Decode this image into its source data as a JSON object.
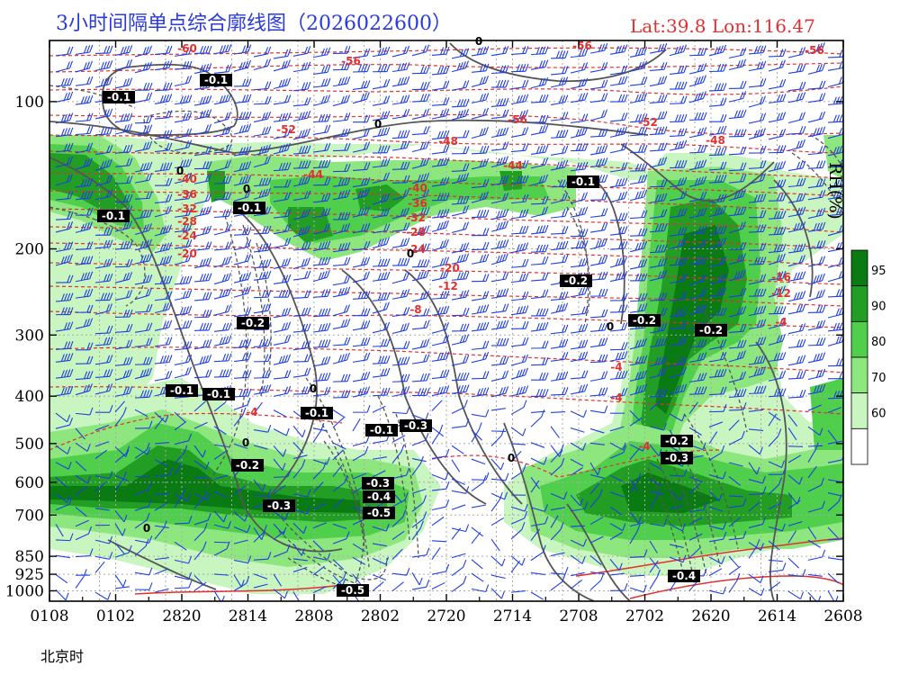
{
  "header": {
    "title": "3小时间隔单点综合廓线图（2026022600）",
    "location": "Lat:39.8  Lon:116.47"
  },
  "chart_data": {
    "type": "heatmap",
    "title": "3小时间隔单点综合廓线图（2026022600）",
    "xlabel": "北京时",
    "x_ticks": [
      "0108",
      "0102",
      "2820",
      "2814",
      "2808",
      "2802",
      "2720",
      "2714",
      "2708",
      "2702",
      "2620",
      "2614",
      "2608"
    ],
    "y_ticks": [
      100,
      200,
      300,
      400,
      500,
      600,
      700,
      850,
      925,
      1000
    ],
    "colorbar": {
      "label": "RH(%)",
      "ticks": [
        60,
        70,
        80,
        90,
        95
      ],
      "colors": [
        "#ffffff",
        "#c8f5c0",
        "#8ee67e",
        "#4fcf4c",
        "#229e25",
        "#0a7a12"
      ]
    },
    "contour_labels_temperature": [
      "-60",
      "-56",
      "-56",
      "-56",
      "-56",
      "-52",
      "-52",
      "-48",
      "-48",
      "-44",
      "-44",
      "-40",
      "-40",
      "-36",
      "-36",
      "-32",
      "-32",
      "-28",
      "-28",
      "-24",
      "-24",
      "-20",
      "-20",
      "-16",
      "-12",
      "-12",
      "-8",
      "-4",
      "-4",
      "-4",
      "-4",
      "-4"
    ],
    "contour_labels_vertical_velocity": [
      "0",
      "0",
      "0",
      "0",
      "0",
      "0",
      "0",
      "0",
      "0",
      "0",
      "-0.1",
      "-0.1",
      "-0.1",
      "-0.1",
      "-0.1",
      "-0.1",
      "-0.1",
      "-0.1",
      "-0.1",
      "-0.2",
      "-0.2",
      "-0.2",
      "-0.2",
      "-0.2",
      "-0.2",
      "-0.3",
      "-0.3",
      "-0.3",
      "-0.3",
      "-0.4",
      "-0.4",
      "-0.5",
      "-0.5"
    ]
  }
}
